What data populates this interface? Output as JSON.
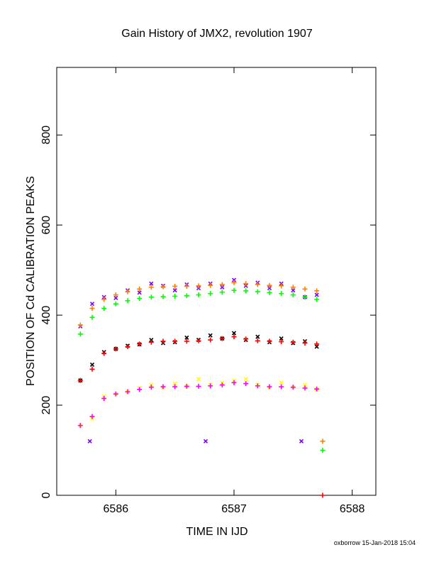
{
  "chart_data": {
    "type": "scatter",
    "title": "Gain History of JMX2, revolution 1907",
    "x_label": "TIME IN IJD",
    "y_label": "POSITION OF Cd CALIBRATION PEAKS",
    "footer": "oxborrow 15-Jan-2018 15:04",
    "xlim": [
      6585.5,
      6588.2
    ],
    "ylim": [
      0,
      950
    ],
    "xticks": [
      6586,
      6587,
      6588
    ],
    "yticks": [
      0,
      200,
      400,
      600,
      800
    ],
    "series": [
      {
        "color": "#7f00ff",
        "marker": "x",
        "x": [
          6585.7,
          6585.8,
          6585.9,
          6586.0,
          6586.1,
          6586.2,
          6586.3,
          6586.4,
          6586.5,
          6586.6,
          6586.7,
          6586.8,
          6586.9,
          6587.0,
          6587.1,
          6587.2,
          6587.3,
          6587.4,
          6587.5,
          6587.6,
          6587.7
        ],
        "values": [
          375,
          425,
          440,
          438,
          455,
          450,
          470,
          465,
          455,
          468,
          460,
          470,
          462,
          478,
          465,
          472,
          460,
          470,
          455,
          440,
          445
        ]
      },
      {
        "color": "#ff8000",
        "marker": "+",
        "x": [
          6585.7,
          6585.8,
          6585.9,
          6586.0,
          6586.1,
          6586.2,
          6586.3,
          6586.4,
          6586.5,
          6586.6,
          6586.7,
          6586.8,
          6586.9,
          6587.0,
          6587.1,
          6587.2,
          6587.3,
          6587.4,
          6587.5,
          6587.6,
          6587.7
        ],
        "values": [
          378,
          415,
          435,
          445,
          452,
          458,
          462,
          463,
          464,
          464,
          465,
          466,
          468,
          472,
          470,
          468,
          466,
          465,
          462,
          458,
          454
        ]
      },
      {
        "color": "#00ff00",
        "marker": "+",
        "x": [
          6585.7,
          6585.8,
          6585.9,
          6586.0,
          6586.1,
          6586.2,
          6586.3,
          6586.4,
          6586.5,
          6586.6,
          6586.7,
          6586.8,
          6586.9,
          6587.0,
          6587.1,
          6587.2,
          6587.3,
          6587.4,
          6587.5,
          6587.6,
          6587.7
        ],
        "values": [
          358,
          395,
          415,
          425,
          432,
          437,
          440,
          441,
          442,
          443,
          445,
          448,
          451,
          455,
          454,
          452,
          450,
          448,
          445,
          440,
          435
        ]
      },
      {
        "color": "#000000",
        "marker": "x",
        "x": [
          6585.7,
          6585.8,
          6585.9,
          6586.0,
          6586.1,
          6586.2,
          6586.3,
          6586.4,
          6586.5,
          6586.6,
          6586.7,
          6586.8,
          6586.9,
          6587.0,
          6587.1,
          6587.2,
          6587.3,
          6587.4,
          6587.5,
          6587.6,
          6587.7
        ],
        "values": [
          255,
          290,
          318,
          325,
          332,
          335,
          345,
          338,
          340,
          350,
          345,
          355,
          348,
          360,
          345,
          352,
          340,
          348,
          338,
          342,
          330
        ]
      },
      {
        "color": "#ff0000",
        "marker": "+",
        "x": [
          6585.7,
          6585.8,
          6585.9,
          6586.0,
          6586.1,
          6586.2,
          6586.3,
          6586.4,
          6586.5,
          6586.6,
          6586.7,
          6586.8,
          6586.9,
          6587.0,
          6587.1,
          6587.2,
          6587.3,
          6587.4,
          6587.5,
          6587.6,
          6587.7
        ],
        "values": [
          255,
          280,
          315,
          325,
          330,
          336,
          340,
          342,
          342,
          342,
          343,
          345,
          348,
          352,
          347,
          343,
          342,
          341,
          340,
          338,
          336
        ]
      },
      {
        "color": "#ffff00",
        "marker": "x",
        "x": [
          6585.7,
          6585.8,
          6585.9,
          6586.0,
          6586.1,
          6586.2,
          6586.3,
          6586.4,
          6586.5,
          6586.6,
          6586.7,
          6586.8,
          6586.9,
          6587.0,
          6587.1,
          6587.2,
          6587.3,
          6587.4,
          6587.5,
          6587.6,
          6587.7
        ],
        "values": [
          155,
          170,
          220,
          225,
          230,
          238,
          245,
          240,
          248,
          242,
          258,
          245,
          250,
          255,
          258,
          245,
          240,
          250,
          240,
          245,
          235
        ]
      },
      {
        "color": "#ff00ff",
        "marker": "+",
        "x": [
          6585.7,
          6585.8,
          6585.9,
          6586.0,
          6586.1,
          6586.2,
          6586.3,
          6586.4,
          6586.5,
          6586.6,
          6586.7,
          6586.8,
          6586.9,
          6587.0,
          6587.1,
          6587.2,
          6587.3,
          6587.4,
          6587.5,
          6587.6,
          6587.7
        ],
        "values": [
          155,
          175,
          215,
          225,
          230,
          235,
          240,
          241,
          241,
          242,
          242,
          243,
          245,
          250,
          248,
          243,
          241,
          241,
          240,
          238,
          236
        ]
      },
      {
        "color": "#7f00ff",
        "marker": "x",
        "x": [
          6585.78,
          6586.76,
          6587.57
        ],
        "values": [
          120,
          120,
          120
        ]
      },
      {
        "color": "#ff8000",
        "marker": "+",
        "x": [
          6587.75
        ],
        "values": [
          120
        ]
      },
      {
        "color": "#00ff00",
        "marker": "+",
        "x": [
          6587.75
        ],
        "values": [
          100
        ]
      },
      {
        "color": "#ff0000",
        "marker": "+",
        "x": [
          6587.75
        ],
        "values": [
          0
        ]
      }
    ]
  }
}
